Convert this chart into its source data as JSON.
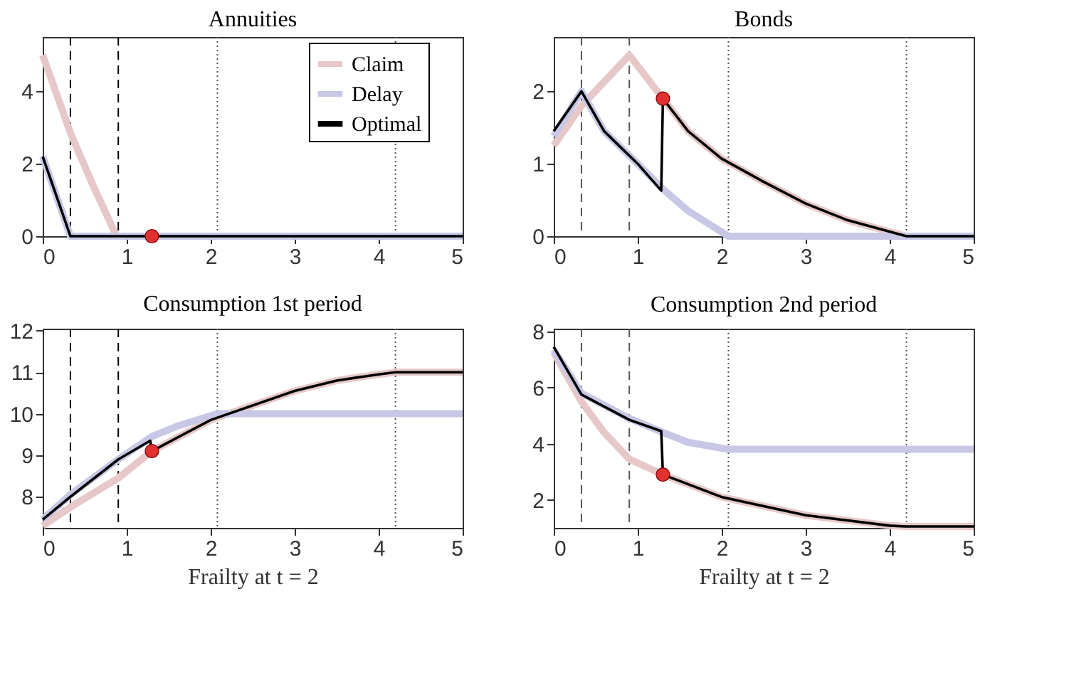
{
  "chart_data": [
    {
      "type": "line",
      "title": "Annuities",
      "xlim": [
        0,
        5
      ],
      "xticks": [
        0,
        1,
        2,
        3,
        4,
        5
      ],
      "ylim": [
        0,
        5.5
      ],
      "yticks": [
        0,
        2,
        4
      ],
      "grid": false,
      "legend": "top right",
      "series": [
        {
          "name": "Claim",
          "color": "#e6c8c8",
          "x": [
            0,
            0.2,
            0.33,
            0.6,
            0.88
          ],
          "values": [
            5.0,
            3.7,
            2.85,
            1.4,
            0
          ]
        },
        {
          "name": "Delay",
          "color": "#c8c8e6",
          "x": [
            0,
            0.33,
            5
          ],
          "values": [
            2.2,
            0,
            0
          ]
        },
        {
          "name": "Optimal",
          "color": "#000000",
          "x": [
            0,
            0.33,
            5
          ],
          "values": [
            2.2,
            0,
            0
          ]
        },
        {
          "type": "scatter",
          "color": "#e03030",
          "marker": "circle",
          "x": [
            1.3
          ],
          "values": [
            0
          ]
        }
      ],
      "ref_lines": [
        {
          "axis": "x",
          "value": 0.33,
          "line_style": "dashed",
          "color": "#000000"
        },
        {
          "axis": "x",
          "value": 0.9,
          "line_style": "dashed",
          "color": "#000000"
        },
        {
          "axis": "x",
          "value": 2.08,
          "line_style": "dotted",
          "color": "#555555"
        },
        {
          "axis": "x",
          "value": 4.2,
          "line_style": "dotted",
          "color": "#555555"
        }
      ]
    },
    {
      "type": "line",
      "title": "Bonds",
      "xlim": [
        0,
        5
      ],
      "xticks": [
        0,
        1,
        2,
        3,
        4,
        5
      ],
      "ylim": [
        0,
        2.75
      ],
      "yticks": [
        0,
        1,
        2
      ],
      "grid": false,
      "series": [
        {
          "color": "#e6c8c8",
          "x": [
            0,
            0.33,
            0.9,
            1.3,
            1.6,
            2.0,
            2.5,
            3.0,
            3.5,
            4.2,
            5
          ],
          "values": [
            1.25,
            1.8,
            2.5,
            1.9,
            1.45,
            1.07,
            0.75,
            0.45,
            0.22,
            0,
            0
          ]
        },
        {
          "color": "#c8c8e6",
          "x": [
            0,
            0.33,
            0.6,
            1.0,
            1.3,
            1.6,
            2.08,
            5
          ],
          "values": [
            1.38,
            2.0,
            1.45,
            1.0,
            0.65,
            0.35,
            0,
            0
          ]
        },
        {
          "color": "#000000",
          "x": [
            0,
            0.33,
            0.6,
            1.0,
            1.28,
            1.3,
            1.6,
            2.0,
            2.5,
            3.0,
            3.5,
            4.2,
            5
          ],
          "values": [
            1.45,
            2.0,
            1.45,
            1.0,
            0.63,
            1.9,
            1.45,
            1.07,
            0.75,
            0.45,
            0.22,
            0,
            0
          ]
        },
        {
          "type": "scatter",
          "color": "#e03030",
          "marker": "circle",
          "x": [
            1.3
          ],
          "values": [
            1.9
          ]
        }
      ],
      "ref_lines": [
        {
          "axis": "x",
          "value": 0.33,
          "line_style": "dashed",
          "color": "#555555"
        },
        {
          "axis": "x",
          "value": 0.9,
          "line_style": "dashed",
          "color": "#555555"
        },
        {
          "axis": "x",
          "value": 2.08,
          "line_style": "dotted",
          "color": "#555555"
        },
        {
          "axis": "x",
          "value": 4.2,
          "line_style": "dotted",
          "color": "#555555"
        }
      ]
    },
    {
      "type": "line",
      "title": "Consumption 1st period",
      "xlabel": "Frailty at t = 2",
      "xlim": [
        0,
        5
      ],
      "xticks": [
        0,
        1,
        2,
        3,
        4,
        5
      ],
      "ylim": [
        7.25,
        12.05
      ],
      "yticks": [
        8,
        9,
        10,
        11,
        12
      ],
      "grid": false,
      "series": [
        {
          "color": "#e6c8c8",
          "x": [
            0,
            0.33,
            0.9,
            1.3,
            2.0,
            3.0,
            3.5,
            4.0,
            4.2,
            5
          ],
          "values": [
            7.3,
            7.75,
            8.45,
            9.1,
            9.85,
            10.55,
            10.8,
            10.95,
            11.0,
            11.0
          ]
        },
        {
          "color": "#c8c8e6",
          "x": [
            0,
            0.33,
            0.9,
            1.3,
            1.6,
            2.08,
            5
          ],
          "values": [
            7.45,
            8.05,
            8.9,
            9.45,
            9.7,
            10.0,
            10.0
          ]
        },
        {
          "color": "#000000",
          "x": [
            0,
            0.33,
            0.9,
            1.28,
            1.3,
            2.0,
            3.0,
            3.5,
            4.0,
            4.2,
            5
          ],
          "values": [
            7.45,
            8.0,
            8.9,
            9.35,
            9.1,
            9.85,
            10.55,
            10.8,
            10.95,
            11.0,
            11.0
          ]
        },
        {
          "type": "scatter",
          "color": "#e03030",
          "marker": "circle",
          "x": [
            1.3
          ],
          "values": [
            9.1
          ]
        }
      ],
      "ref_lines": [
        {
          "axis": "x",
          "value": 0.33,
          "line_style": "dashed",
          "color": "#000000"
        },
        {
          "axis": "x",
          "value": 0.9,
          "line_style": "dashed",
          "color": "#000000"
        },
        {
          "axis": "x",
          "value": 2.08,
          "line_style": "dotted",
          "color": "#555555"
        },
        {
          "axis": "x",
          "value": 4.2,
          "line_style": "dotted",
          "color": "#555555"
        }
      ]
    },
    {
      "type": "line",
      "title": "Consumption 2nd period",
      "xlabel": "Frailty at t = 2",
      "xlim": [
        0,
        5
      ],
      "xticks": [
        0,
        1,
        2,
        3,
        4,
        5
      ],
      "ylim": [
        1.0,
        8.1
      ],
      "yticks": [
        2,
        4,
        6,
        8
      ],
      "grid": false,
      "series": [
        {
          "color": "#e6c8c8",
          "x": [
            0,
            0.33,
            0.6,
            0.9,
            1.3,
            2.0,
            3.0,
            4.0,
            4.2,
            5
          ],
          "values": [
            7.25,
            5.5,
            4.4,
            3.45,
            2.9,
            2.1,
            1.45,
            1.08,
            1.05,
            1.05
          ]
        },
        {
          "color": "#c8c8e6",
          "x": [
            0,
            0.33,
            0.9,
            1.3,
            1.6,
            2.08,
            5
          ],
          "values": [
            7.35,
            5.8,
            4.9,
            4.4,
            4.05,
            3.8,
            3.8
          ]
        },
        {
          "color": "#000000",
          "x": [
            0,
            0.33,
            0.9,
            1.28,
            1.3,
            2.0,
            3.0,
            4.0,
            4.2,
            5
          ],
          "values": [
            7.45,
            5.75,
            4.85,
            4.45,
            2.9,
            2.1,
            1.45,
            1.08,
            1.05,
            1.05
          ]
        },
        {
          "type": "scatter",
          "color": "#e03030",
          "marker": "circle",
          "x": [
            1.3
          ],
          "values": [
            2.9
          ]
        }
      ],
      "ref_lines": [
        {
          "axis": "x",
          "value": 0.33,
          "line_style": "dashed",
          "color": "#555555"
        },
        {
          "axis": "x",
          "value": 0.9,
          "line_style": "dashed",
          "color": "#555555"
        },
        {
          "axis": "x",
          "value": 2.08,
          "line_style": "dotted",
          "color": "#555555"
        },
        {
          "axis": "x",
          "value": 4.2,
          "line_style": "dotted",
          "color": "#555555"
        }
      ]
    }
  ]
}
